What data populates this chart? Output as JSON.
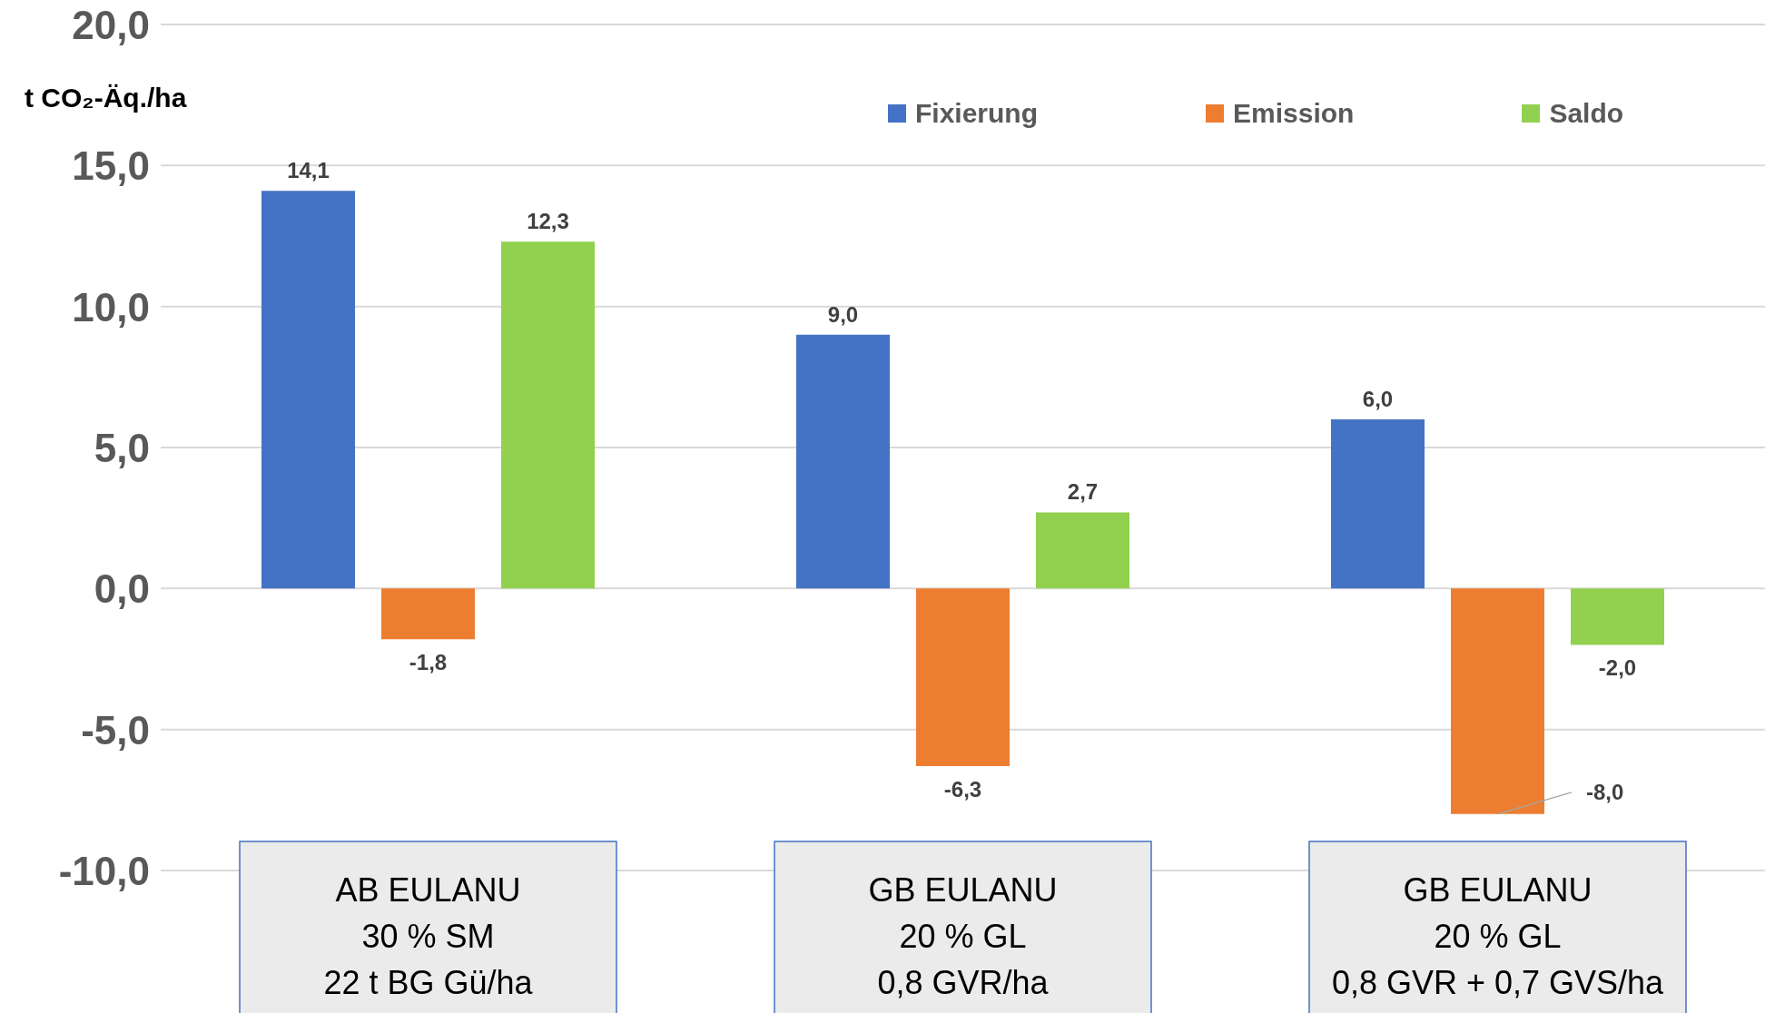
{
  "chart_data": {
    "type": "bar",
    "ylabel": "t CO₂-Äq./ha",
    "categories": [
      "AB EULANU\n30 % SM\n22 t BG Gü/ha",
      "GB EULANU\n20 % GL\n0,8 GVR/ha",
      "GB EULANU\n20 % GL\n0,8 GVR + 0,7 GVS/ha"
    ],
    "series": [
      {
        "name": "Fixierung",
        "color": "#4472c4",
        "values": [
          14.1,
          9.0,
          6.0
        ],
        "value_labels": [
          "14,1",
          "9,0",
          "6,0"
        ]
      },
      {
        "name": "Emission",
        "color": "#ed7d31",
        "values": [
          -1.8,
          -6.3,
          -8.0
        ],
        "value_labels": [
          "-1,8",
          "-6,3",
          "-8,0"
        ]
      },
      {
        "name": "Saldo",
        "color": "#92d050",
        "values": [
          12.3,
          2.7,
          -2.0
        ],
        "value_labels": [
          "12,3",
          "2,7",
          "-2,0"
        ]
      }
    ],
    "ylim": [
      -10,
      20
    ],
    "yticks": [
      {
        "value": -10,
        "label": "-10,0"
      },
      {
        "value": -5,
        "label": "-5,0"
      },
      {
        "value": 0,
        "label": "0,0"
      },
      {
        "value": 5,
        "label": "5,0"
      },
      {
        "value": 10,
        "label": "10,0"
      },
      {
        "value": 15,
        "label": "15,0"
      },
      {
        "value": 20,
        "label": "20,0"
      }
    ],
    "grid": "y",
    "legend": "top right"
  }
}
